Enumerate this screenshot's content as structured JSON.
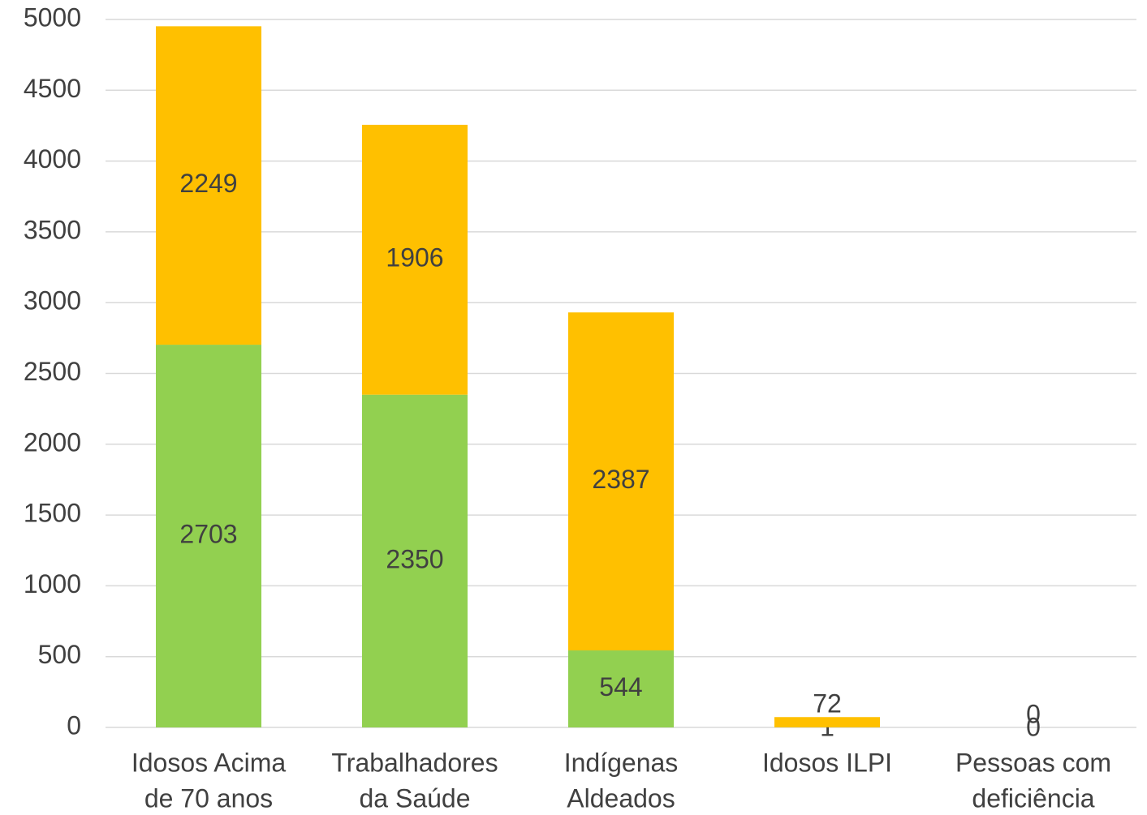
{
  "chart_data": {
    "type": "stacked_bar",
    "categories": [
      [
        "Idosos Acima",
        "de 70 anos"
      ],
      [
        "Trabalhadores",
        "da Saúde"
      ],
      [
        "Indígenas",
        "Aldeados"
      ],
      [
        "Idosos ILPI"
      ],
      [
        "Pessoas com",
        "deficiência"
      ]
    ],
    "series": [
      {
        "color": "#92d050",
        "values": [
          2703,
          2350,
          544,
          1,
          0
        ]
      },
      {
        "color": "#ffc000",
        "values": [
          2249,
          1906,
          2387,
          72,
          0
        ]
      }
    ],
    "ylim": [
      0,
      5000
    ],
    "yticks": [
      0,
      500,
      1000,
      1500,
      2000,
      2500,
      3000,
      3500,
      4000,
      4500,
      5000
    ],
    "grid": true
  }
}
